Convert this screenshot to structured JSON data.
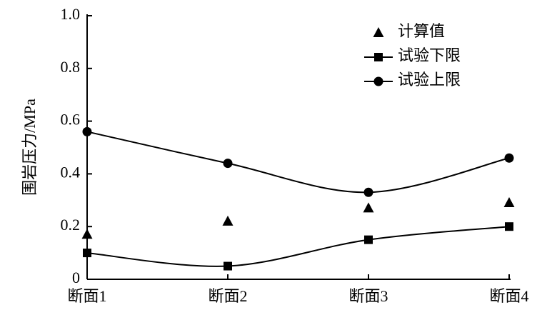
{
  "chart_data": {
    "type": "line",
    "ylabel": "围岩压力/MPa",
    "categories": [
      "断面1",
      "断面2",
      "断面3",
      "断面4"
    ],
    "series": [
      {
        "name": "计算值",
        "color": "#000000",
        "marker": "triangle",
        "line": false,
        "values": [
          0.17,
          0.22,
          0.27,
          0.29
        ]
      },
      {
        "name": "试验下限",
        "color": "#000000",
        "marker": "square",
        "line": true,
        "values": [
          0.1,
          0.05,
          0.15,
          0.2
        ]
      },
      {
        "name": "试验上限",
        "color": "#000000",
        "marker": "circle",
        "line": true,
        "values": [
          0.56,
          0.44,
          0.33,
          0.46
        ]
      }
    ],
    "ylim": [
      0,
      1
    ],
    "yticks": [
      0,
      0.2,
      0.4,
      0.6,
      0.8,
      {
        "value": 1,
        "label": "1.0"
      }
    ],
    "legend": "top-right"
  }
}
